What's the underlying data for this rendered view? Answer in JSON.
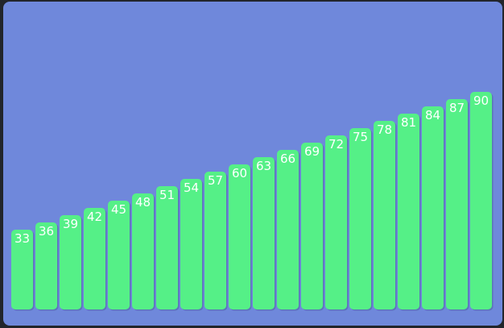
{
  "colors": {
    "frame": "#22252b",
    "panel": "#6f88db",
    "bar": "#55f087",
    "bar_shadow": "#4a5f9a",
    "label": "#ffffff"
  },
  "chart_data": {
    "type": "bar",
    "title": "",
    "xlabel": "",
    "ylabel": "",
    "grid": false,
    "legend": "none",
    "ylim": [
      0,
      100
    ],
    "values": [
      33,
      36,
      39,
      42,
      45,
      48,
      51,
      54,
      57,
      60,
      63,
      66,
      69,
      72,
      75,
      78,
      81,
      84,
      87,
      90
    ],
    "data_labels": [
      "33",
      "36",
      "39",
      "42",
      "45",
      "48",
      "51",
      "54",
      "57",
      "60",
      "63",
      "66",
      "69",
      "72",
      "75",
      "78",
      "81",
      "84",
      "87",
      "90"
    ]
  }
}
